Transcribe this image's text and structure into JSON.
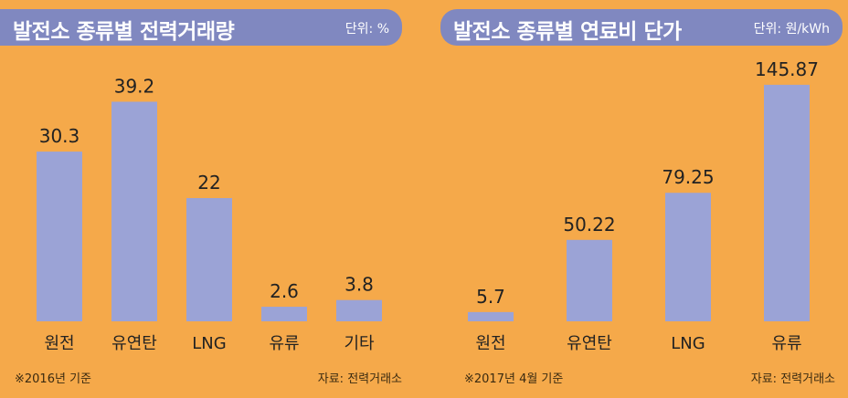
{
  "panels": [
    {
      "title": "발전소 종류별 전력거래량",
      "unit": "단위: %",
      "footnote": "※2016년 기준",
      "source": "자료: 전력거래소"
    },
    {
      "title": "발전소 종류별 연료비 단가",
      "unit": "단위: 원/kWh",
      "footnote": "※2017년 4월 기준",
      "source": "자료: 전력거래소"
    }
  ],
  "chart_data": [
    {
      "type": "bar",
      "title": "발전소 종류별 전력거래량",
      "unit": "단위: %",
      "categories": [
        "원전",
        "유연탄",
        "LNG",
        "유류",
        "기타"
      ],
      "values": [
        30.3,
        39.2,
        22,
        2.6,
        3.8
      ],
      "value_labels": [
        "30.3",
        "39.2",
        "22",
        "2.6",
        "3.8"
      ],
      "ylim": [
        0,
        44
      ],
      "grid": false,
      "colors": {
        "bar": "#9BA3D6",
        "background": "#F5A94A",
        "title_bg": "#8088C0"
      }
    },
    {
      "type": "bar",
      "title": "발전소 종류별 연료비 단가",
      "unit": "단위: 원/kWh",
      "categories": [
        "원전",
        "유연탄",
        "LNG",
        "유류"
      ],
      "values": [
        5.7,
        50.22,
        79.25,
        145.87
      ],
      "value_labels": [
        "5.7",
        "50.22",
        "79.25",
        "145.87"
      ],
      "ylim": [
        0,
        152
      ],
      "grid": false,
      "colors": {
        "bar": "#9BA3D6",
        "background": "#F5A94A",
        "title_bg": "#8088C0"
      }
    }
  ]
}
